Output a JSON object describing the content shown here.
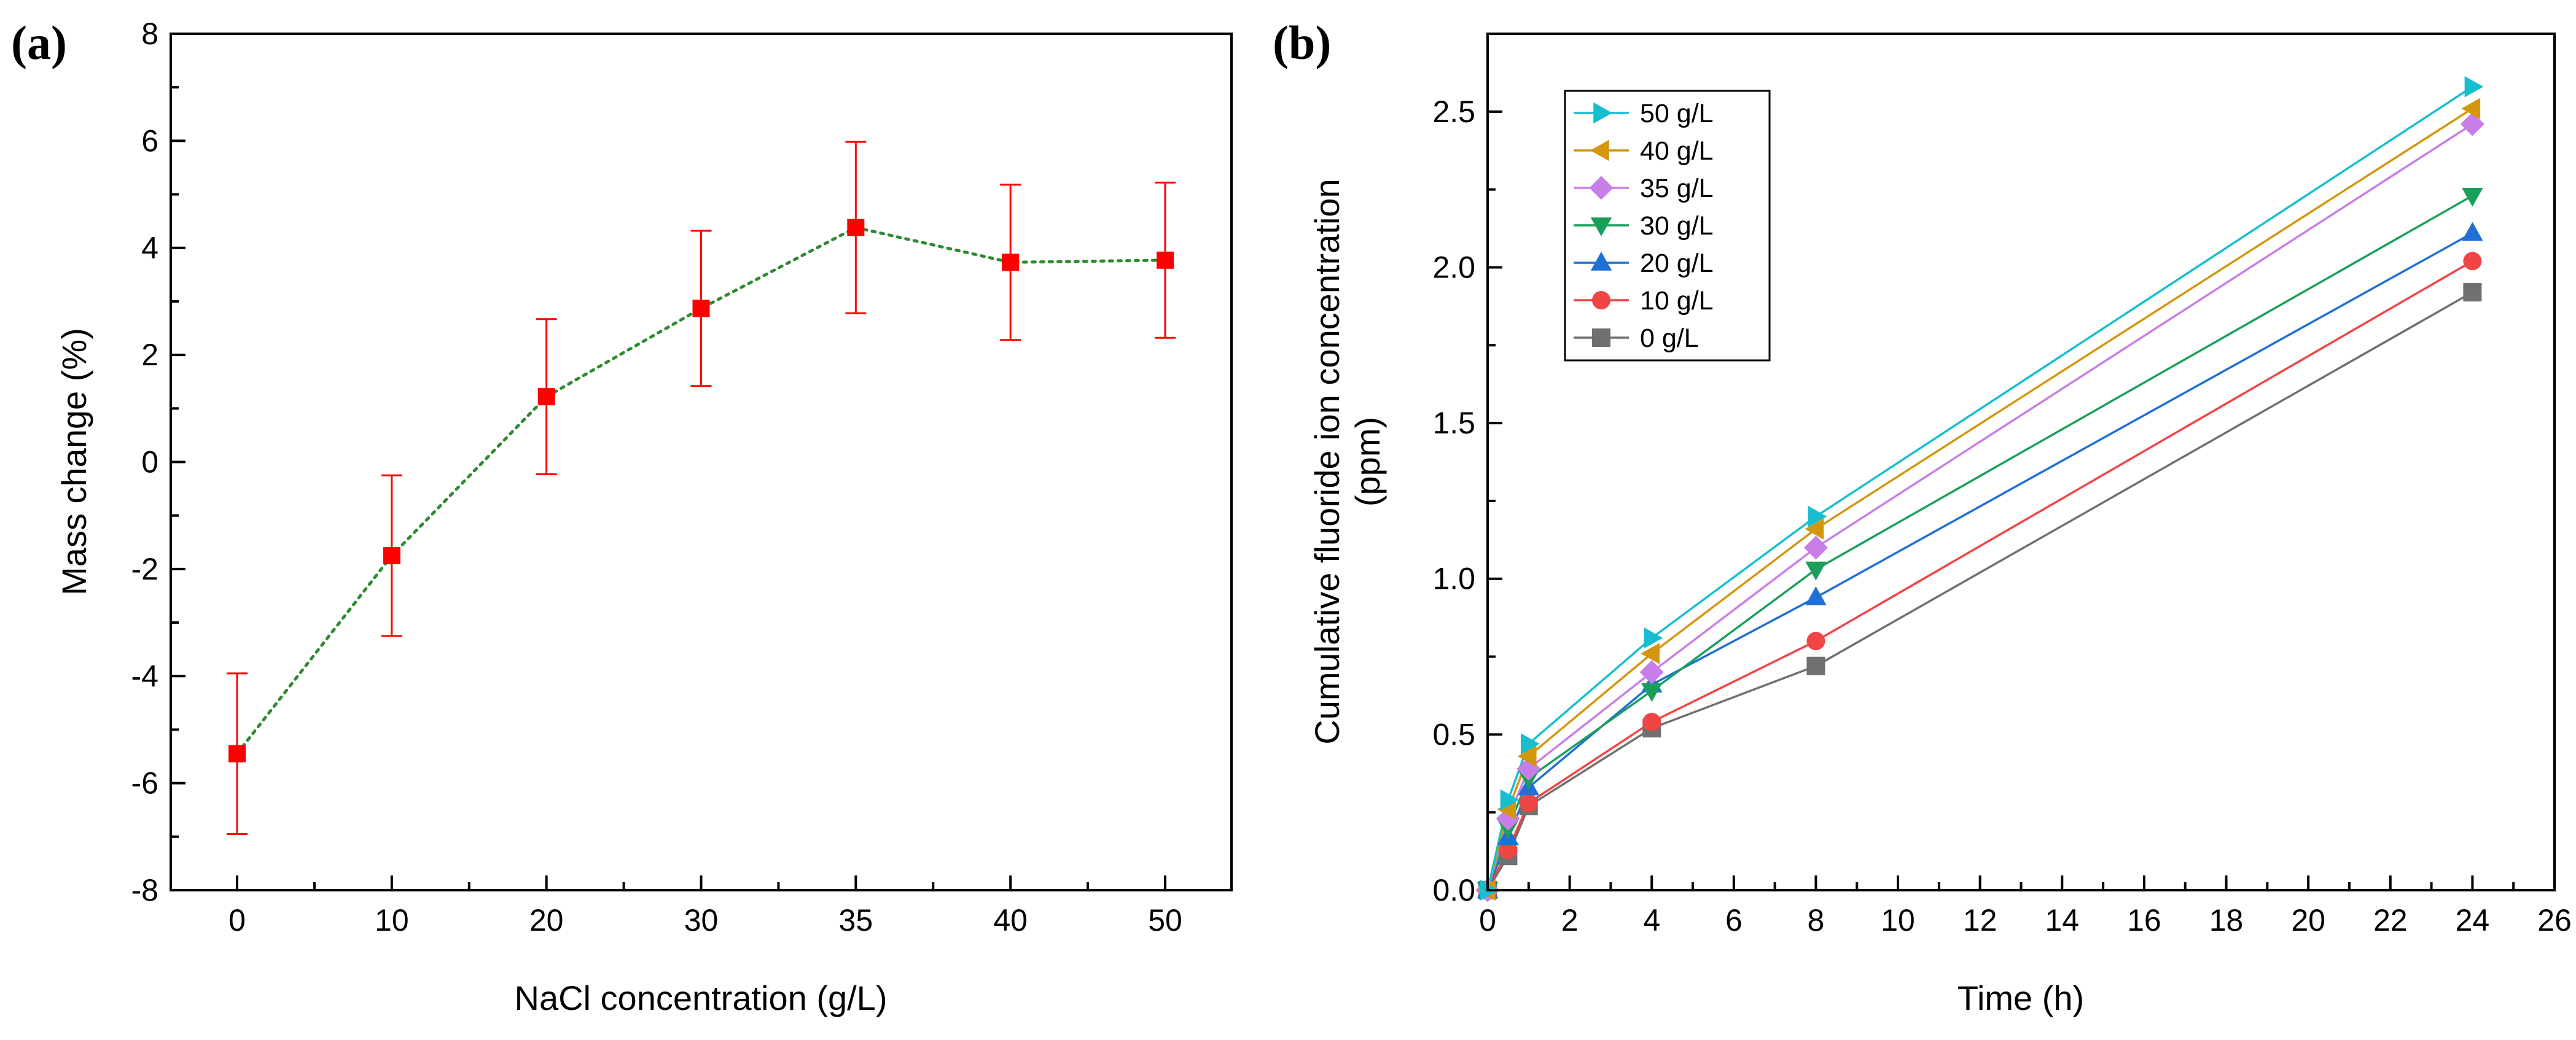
{
  "chart_data": [
    {
      "panel_label": "(a)",
      "type": "scatter",
      "title": "",
      "xlabel": "NaCl concentration (g/L)",
      "ylabel": "Mass change (%)",
      "x_tick_labels": [
        "0",
        "10",
        "20",
        "30",
        "35",
        "40",
        "50"
      ],
      "y_ticks": [
        -8,
        -6,
        -4,
        -2,
        0,
        2,
        4,
        6,
        8
      ],
      "y_tick_labels": [
        "-8",
        "-6",
        "-4",
        "-2",
        "0",
        "2",
        "4",
        "6",
        "8"
      ],
      "ylim": [
        -8,
        8
      ],
      "grid": false,
      "legend": "none",
      "series": [
        {
          "name": "Mass change",
          "color": "#ff0000",
          "line_color": "#2e8b2e",
          "line_style": "dotted",
          "marker": "square",
          "x": [
            "0",
            "10",
            "20",
            "30",
            "35",
            "40",
            "50"
          ],
          "values": [
            -5.45,
            -1.75,
            1.22,
            2.87,
            4.38,
            3.73,
            3.77
          ],
          "error": [
            1.5,
            1.5,
            1.45,
            1.45,
            1.6,
            1.45,
            1.45
          ]
        }
      ]
    },
    {
      "panel_label": "(b)",
      "type": "line",
      "title": "",
      "xlabel": "Time (h)",
      "ylabel": "Cumulative fluoride ion concentration (ppm)",
      "ylabel_lines": [
        "Cumulative fluoride ion concentration",
        "(ppm)"
      ],
      "xlim": [
        0,
        26
      ],
      "x_ticks": [
        0,
        2,
        4,
        6,
        8,
        10,
        12,
        14,
        16,
        18,
        20,
        22,
        24,
        26
      ],
      "x_tick_labels": [
        "0",
        "2",
        "4",
        "6",
        "8",
        "10",
        "12",
        "14",
        "16",
        "18",
        "20",
        "22",
        "24",
        "26"
      ],
      "ylim": [
        0,
        2.75
      ],
      "y_ticks": [
        0,
        0.5,
        1.0,
        1.5,
        2.0,
        2.5
      ],
      "y_tick_labels": [
        "0.0",
        "0.5",
        "1.0",
        "1.5",
        "2.0",
        "2.5"
      ],
      "grid": false,
      "legend": "top-left",
      "x": [
        0,
        0.5,
        1,
        4,
        8,
        24
      ],
      "series": [
        {
          "name": "50 g/L",
          "color": "#17becf",
          "marker": "triangle-right",
          "values": [
            0,
            0.29,
            0.47,
            0.81,
            1.2,
            2.58
          ]
        },
        {
          "name": "40 g/L",
          "color": "#d4960d",
          "marker": "triangle-left",
          "values": [
            0,
            0.26,
            0.43,
            0.76,
            1.16,
            2.51
          ]
        },
        {
          "name": "35 g/L",
          "color": "#c77ee8",
          "marker": "diamond",
          "values": [
            0,
            0.23,
            0.39,
            0.7,
            1.1,
            2.46
          ]
        },
        {
          "name": "30 g/L",
          "color": "#1a9f5a",
          "marker": "triangle-down",
          "values": [
            0,
            0.2,
            0.36,
            0.64,
            1.03,
            2.23
          ]
        },
        {
          "name": "20 g/L",
          "color": "#1f6fd6",
          "marker": "triangle-up",
          "values": [
            0,
            0.17,
            0.33,
            0.66,
            0.94,
            2.11
          ]
        },
        {
          "name": "10 g/L",
          "color": "#f04545",
          "marker": "circle",
          "values": [
            0,
            0.13,
            0.28,
            0.54,
            0.8,
            2.02
          ]
        },
        {
          "name": "0 g/L",
          "color": "#707070",
          "marker": "square",
          "values": [
            0,
            0.11,
            0.27,
            0.52,
            0.72,
            1.92
          ]
        }
      ]
    }
  ]
}
